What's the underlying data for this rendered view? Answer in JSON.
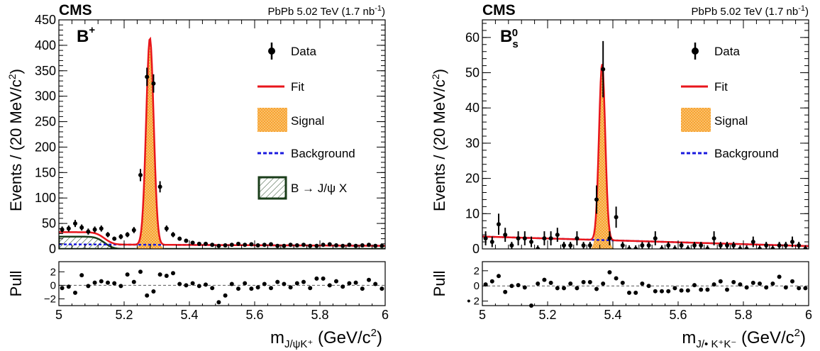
{
  "chart_data": [
    {
      "type": "scatter",
      "experiment": "CMS",
      "energy_label": "PbPb 5.02 TeV (1.7 nb",
      "lumi_exponent": "-1",
      "lumi_close": ")",
      "particle": "B",
      "particle_sup": "+",
      "particle_sub": "",
      "ylabel": "Events / (20 MeV/c",
      "ylabel_exp": "2",
      "ylabel_close": ")",
      "xlabel_main": "m",
      "xlabel_sub": "J/ψK⁺",
      "xlabel_units": " (GeV/c",
      "xlabel_exp": "2",
      "xlabel_close": ")",
      "pull_label": "Pull",
      "xlim": [
        5.0,
        6.0
      ],
      "ylim": [
        0,
        450
      ],
      "pull_ylim": [
        -3,
        3.5
      ],
      "x_ticks": [
        "5",
        "5.2",
        "5.4",
        "5.6",
        "5.8",
        "6"
      ],
      "y_ticks": [
        "0",
        "50",
        "100",
        "150",
        "200",
        "250",
        "300",
        "350",
        "400",
        "450"
      ],
      "pull_ticks": [
        "2",
        "0",
        "−2"
      ],
      "colors": {
        "fit": "#e8151b",
        "signal": "#f9a636",
        "background": "#1a1adf",
        "bjpsix": "#1a3d1a"
      },
      "legend": {
        "data": "Data",
        "fit": "Fit",
        "signal": "Signal",
        "background": "Background",
        "bjpsix": "B → J/ψ X"
      },
      "data_x": [
        5.01,
        5.03,
        5.05,
        5.07,
        5.09,
        5.11,
        5.13,
        5.15,
        5.17,
        5.19,
        5.21,
        5.23,
        5.25,
        5.27,
        5.29,
        5.31,
        5.33,
        5.35,
        5.37,
        5.39,
        5.41,
        5.43,
        5.45,
        5.47,
        5.49,
        5.51,
        5.53,
        5.55,
        5.57,
        5.59,
        5.61,
        5.63,
        5.65,
        5.67,
        5.69,
        5.71,
        5.73,
        5.75,
        5.77,
        5.79,
        5.81,
        5.83,
        5.85,
        5.87,
        5.89,
        5.91,
        5.93,
        5.95,
        5.97,
        5.99
      ],
      "data_y": [
        38,
        40,
        50,
        42,
        34,
        38,
        40,
        28,
        20,
        24,
        28,
        37,
        145,
        338,
        325,
        122,
        40,
        28,
        20,
        16,
        12,
        10,
        10,
        8,
        6,
        7,
        8,
        10,
        8,
        9,
        7,
        8,
        9,
        6,
        6,
        8,
        7,
        8,
        6,
        6,
        8,
        9,
        7,
        6,
        8,
        6,
        7,
        8,
        6,
        6
      ],
      "data_err": [
        6,
        6,
        7,
        6,
        6,
        6,
        6,
        5,
        4,
        5,
        5,
        6,
        12,
        18,
        18,
        11,
        6,
        5,
        4,
        4,
        3,
        3,
        3,
        3,
        2,
        3,
        3,
        3,
        3,
        3,
        3,
        3,
        3,
        2,
        2,
        3,
        3,
        3,
        2,
        2,
        3,
        3,
        3,
        2,
        3,
        2,
        3,
        3,
        2,
        2
      ],
      "pull": [
        -0.4,
        -0.2,
        -1.1,
        1.5,
        -0.1,
        0.4,
        0.6,
        0.4,
        0.3,
        -0.1,
        1.6,
        0.5,
        2.0,
        -1.5,
        -0.9,
        1.6,
        1.4,
        1.8,
        0.2,
        0.0,
        0.3,
        -0.1,
        0.1,
        -0.4,
        -2.5,
        -1.5,
        0.2,
        -0.5,
        0.3,
        -0.5,
        -0.3,
        0.2,
        -0.4,
        0.5,
        0.2,
        -0.3,
        0.3,
        0.5,
        -0.4,
        1.0,
        1.0,
        0.0,
        0.6,
        -0.2,
        0.3,
        0.4,
        -0.5,
        0.8,
        0.2,
        -0.5
      ],
      "signal": {
        "mean": 5.279,
        "sigma": 0.0115,
        "yield_peak": 406
      },
      "background_level": [
        9,
        6
      ],
      "bjpsix": {
        "amplitude": 24,
        "edge": 5.14,
        "width": 0.03
      }
    },
    {
      "type": "scatter",
      "experiment": "CMS",
      "energy_label": "PbPb 5.02 TeV (1.7 nb",
      "lumi_exponent": "-1",
      "lumi_close": ")",
      "particle": "B",
      "particle_sup": "0",
      "particle_sub": "s",
      "ylabel": "Events / (20 MeV/c",
      "ylabel_exp": "2",
      "ylabel_close": ")",
      "xlabel_main": "m",
      "xlabel_sub": "J/• K⁺K⁻",
      "xlabel_units": " (GeV/c",
      "xlabel_exp": "2",
      "xlabel_close": ")",
      "pull_label": "Pull",
      "xlim": [
        5.0,
        6.0
      ],
      "ylim": [
        0,
        65
      ],
      "pull_ylim": [
        -2.6,
        3.2
      ],
      "x_ticks": [
        "5",
        "5.2",
        "5.4",
        "5.6",
        "5.8",
        "6"
      ],
      "y_ticks": [
        "0",
        "10",
        "20",
        "30",
        "40",
        "50",
        "60"
      ],
      "pull_ticks": [
        "2",
        "0",
        "• 2"
      ],
      "colors": {
        "fit": "#e8151b",
        "signal": "#f9a636",
        "background": "#1a1adf"
      },
      "legend": {
        "data": "Data",
        "fit": "Fit",
        "signal": "Signal",
        "background": "Background"
      },
      "data_x": [
        5.01,
        5.03,
        5.05,
        5.07,
        5.09,
        5.11,
        5.13,
        5.15,
        5.17,
        5.19,
        5.21,
        5.23,
        5.25,
        5.27,
        5.29,
        5.31,
        5.33,
        5.35,
        5.37,
        5.39,
        5.41,
        5.43,
        5.45,
        5.47,
        5.49,
        5.51,
        5.53,
        5.55,
        5.57,
        5.59,
        5.61,
        5.63,
        5.65,
        5.67,
        5.69,
        5.71,
        5.73,
        5.75,
        5.77,
        5.79,
        5.81,
        5.83,
        5.85,
        5.87,
        5.89,
        5.91,
        5.93,
        5.95,
        5.97,
        5.99
      ],
      "data_y": [
        3,
        2,
        7,
        4,
        1,
        3,
        3,
        2,
        0,
        3,
        3,
        4,
        1,
        1,
        3,
        1,
        1,
        14,
        51,
        3,
        9,
        1,
        0,
        0,
        1,
        1,
        3,
        0,
        1,
        0,
        1,
        0,
        1,
        1,
        0,
        3,
        1,
        1,
        1,
        0,
        0,
        2,
        0,
        1,
        0,
        1,
        1,
        2,
        1,
        0
      ],
      "data_err": [
        2,
        1.5,
        3,
        2,
        1,
        2,
        2,
        1.5,
        1,
        2,
        2,
        2,
        1,
        1,
        2,
        1,
        1,
        4,
        8,
        2,
        3,
        1,
        1,
        1,
        1,
        1,
        2,
        1,
        1,
        1,
        1,
        1,
        1,
        1,
        1,
        2,
        1,
        1,
        1,
        1,
        1,
        1.5,
        1,
        1,
        1,
        1,
        1,
        1.5,
        1,
        1
      ],
      "pull": [
        0.2,
        0.6,
        1.3,
        -0.8,
        0.0,
        0.1,
        -0.2,
        -2.6,
        0.3,
        0.8,
        0.4,
        -0.3,
        -0.3,
        0.3,
        -0.3,
        0.5,
        0.5,
        -0.4,
        0.3,
        1.8,
        1.0,
        0.4,
        -0.9,
        -0.9,
        0.3,
        0.0,
        -0.7,
        -0.7,
        -0.7,
        -0.3,
        -0.6,
        -0.6,
        0.1,
        -0.5,
        -0.5,
        0.2,
        0.6,
        -0.5,
        0.5,
        0.2,
        -0.2,
        0.4,
        0.3,
        -0.2,
        0.3,
        1.2,
        -0.2,
        0.6,
        -0.3,
        -0.3
      ],
      "signal": {
        "mean": 5.367,
        "sigma": 0.0095,
        "yield_peak": 50
      },
      "background_level": [
        3.5,
        0.8
      ]
    }
  ]
}
